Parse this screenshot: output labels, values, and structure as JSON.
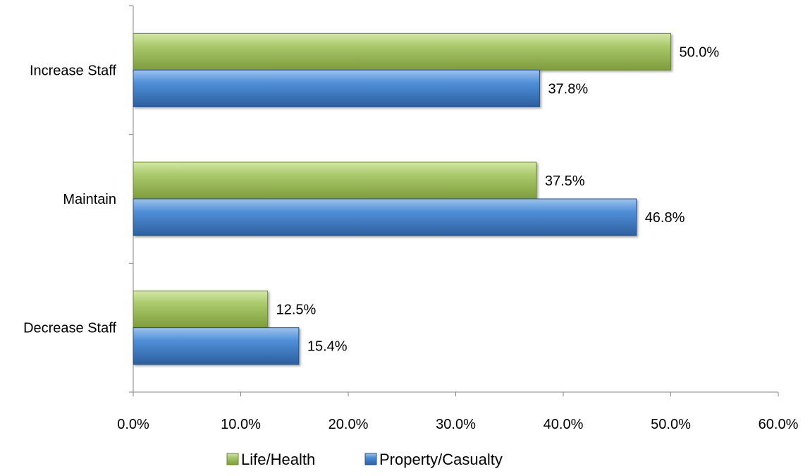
{
  "chart_data": {
    "type": "bar",
    "orientation": "horizontal",
    "title": "",
    "xlabel": "",
    "ylabel": "",
    "categories": [
      "Increase Staff",
      "Maintain",
      "Decrease Staff"
    ],
    "series": [
      {
        "name": "Life/Health",
        "values": [
          50.0,
          37.5,
          12.5
        ],
        "labels": [
          "50.0%",
          "37.5%",
          "12.5%"
        ],
        "color": "#9bbb59"
      },
      {
        "name": "Property/Casualty",
        "values": [
          37.8,
          46.8,
          15.4
        ],
        "labels": [
          "37.8%",
          "46.8%",
          "15.4%"
        ],
        "color": "#4f81bd"
      }
    ],
    "xlim": [
      0,
      60
    ],
    "xticks": [
      0,
      10,
      20,
      30,
      40,
      50,
      60
    ],
    "xtick_labels": [
      "0.0%",
      "10.0%",
      "20.0%",
      "30.0%",
      "40.0%",
      "50.0%",
      "60.0%"
    ],
    "grid": false,
    "legend_position": "bottom"
  }
}
